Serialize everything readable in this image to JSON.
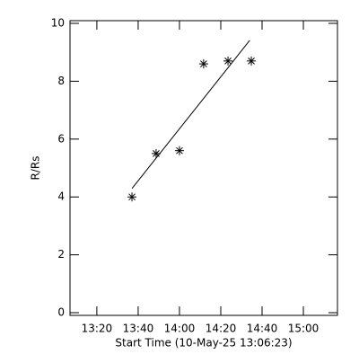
{
  "chart_data": {
    "type": "scatter",
    "xlabel": "Start Time (10-May-25 13:06:23)",
    "ylabel": "R/Rs",
    "xlim": [
      787,
      916.5
    ],
    "ylim": [
      0,
      10
    ],
    "xticks": [
      {
        "value": 800,
        "label": "13:20"
      },
      {
        "value": 820,
        "label": "13:40"
      },
      {
        "value": 840,
        "label": "14:00"
      },
      {
        "value": 860,
        "label": "14:20"
      },
      {
        "value": 880,
        "label": "14:40"
      },
      {
        "value": 900,
        "label": "15:00"
      }
    ],
    "yticks": [
      0,
      2,
      4,
      6,
      8,
      10
    ],
    "points": {
      "x": [
        817,
        828.7,
        840,
        851.7,
        863.5,
        874.8
      ],
      "values": [
        4.0,
        5.5,
        5.6,
        8.6,
        8.7,
        8.7
      ],
      "color": "#000000"
    },
    "fit": {
      "x": [
        817,
        874
      ],
      "values": [
        4.29,
        9.41
      ],
      "color": "#000000"
    }
  }
}
